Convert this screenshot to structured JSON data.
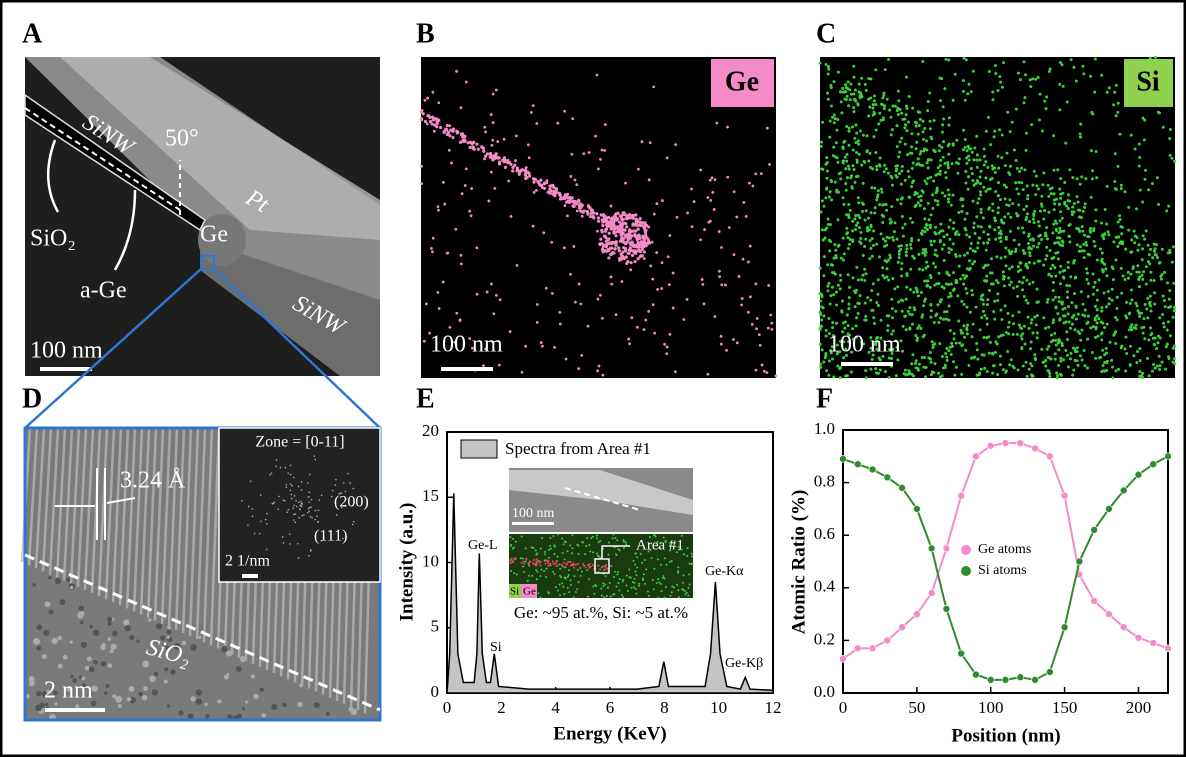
{
  "panel_letters": [
    "A",
    "B",
    "C",
    "D",
    "E",
    "F"
  ],
  "panel_a": {
    "texts": [
      "SiNW",
      "50°",
      "Pt",
      "SiO₂",
      "Ge",
      "a-Ge",
      "SiNW",
      "100 nm"
    ]
  },
  "panel_b": {
    "element": "Ge",
    "scale": "100 nm"
  },
  "panel_c": {
    "element": "Si",
    "scale": "100 nm"
  },
  "panel_d": {
    "spacing": "3.24 Å",
    "zone": "Zone = [0-11]",
    "spot1": "(200)",
    "spot2": "(111)",
    "fft_scale": "2 1/nm",
    "layer": "SiO₂",
    "scale": "2 nm"
  },
  "chart_data": [
    {
      "type": "area",
      "xlabel": "Energy (KeV)",
      "ylabel": "Intensity (a.u.)",
      "x": [
        0,
        0.1,
        0.25,
        0.4,
        0.6,
        1.0,
        1.1,
        1.19,
        1.3,
        1.45,
        1.6,
        1.74,
        1.9,
        3,
        5,
        7,
        7.8,
        7.98,
        8.15,
        9.5,
        9.7,
        9.88,
        10.05,
        10.3,
        10.8,
        10.98,
        11.15,
        12
      ],
      "series": [
        {
          "name": "Spectra from Area #1",
          "color": "#c4c4c4",
          "values": [
            0,
            3,
            15.3,
            3,
            0.8,
            0.8,
            3,
            10.7,
            3,
            0.8,
            0.8,
            3,
            0.5,
            0.3,
            0.3,
            0.3,
            0.5,
            2.4,
            0.5,
            0.5,
            3,
            8.5,
            3,
            0.5,
            0.3,
            1.2,
            0.3,
            0.2
          ]
        }
      ],
      "xlim": [
        0,
        12
      ],
      "xticks": [
        0,
        2,
        4,
        6,
        8,
        10,
        12
      ],
      "ylim": [
        0,
        20
      ],
      "yticks": [
        0,
        5,
        10,
        15,
        20
      ],
      "peak_labels": [
        "Ge-L",
        "Si",
        "Ge-Kα",
        "Ge-Kβ"
      ],
      "inset_texts": [
        "100 nm",
        "Area #1",
        "Si",
        "Ge"
      ],
      "note": "Ge: ~95 at.%, Si: ~5 at.%"
    },
    {
      "type": "scatter-line",
      "xlabel": "Position (nm)",
      "ylabel": "Atomic Ratio (%)",
      "x": [
        0,
        10,
        20,
        30,
        40,
        50,
        60,
        70,
        80,
        90,
        100,
        110,
        120,
        130,
        140,
        150,
        160,
        170,
        180,
        190,
        200,
        210,
        220
      ],
      "series": [
        {
          "name": "Ge atoms",
          "color": "#f48ac8",
          "values": [
            0.13,
            0.17,
            0.17,
            0.2,
            0.25,
            0.3,
            0.38,
            0.55,
            0.75,
            0.9,
            0.94,
            0.95,
            0.95,
            0.93,
            0.9,
            0.75,
            0.45,
            0.35,
            0.3,
            0.25,
            0.21,
            0.19,
            0.17
          ]
        },
        {
          "name": "Si atoms",
          "color": "#2e8b2e",
          "values": [
            0.89,
            0.87,
            0.85,
            0.82,
            0.78,
            0.7,
            0.55,
            0.32,
            0.15,
            0.07,
            0.05,
            0.05,
            0.06,
            0.05,
            0.08,
            0.25,
            0.5,
            0.62,
            0.7,
            0.77,
            0.83,
            0.87,
            0.9
          ]
        }
      ],
      "xlim": [
        0,
        220
      ],
      "xticks": [
        0,
        50,
        100,
        150,
        200
      ],
      "ylim": [
        0,
        1
      ],
      "yticks": [
        {
          "value": 0,
          "label": "0.0"
        },
        0.2,
        0.4,
        0.6,
        0.8,
        {
          "value": 1,
          "label": "1.0"
        }
      ]
    }
  ]
}
